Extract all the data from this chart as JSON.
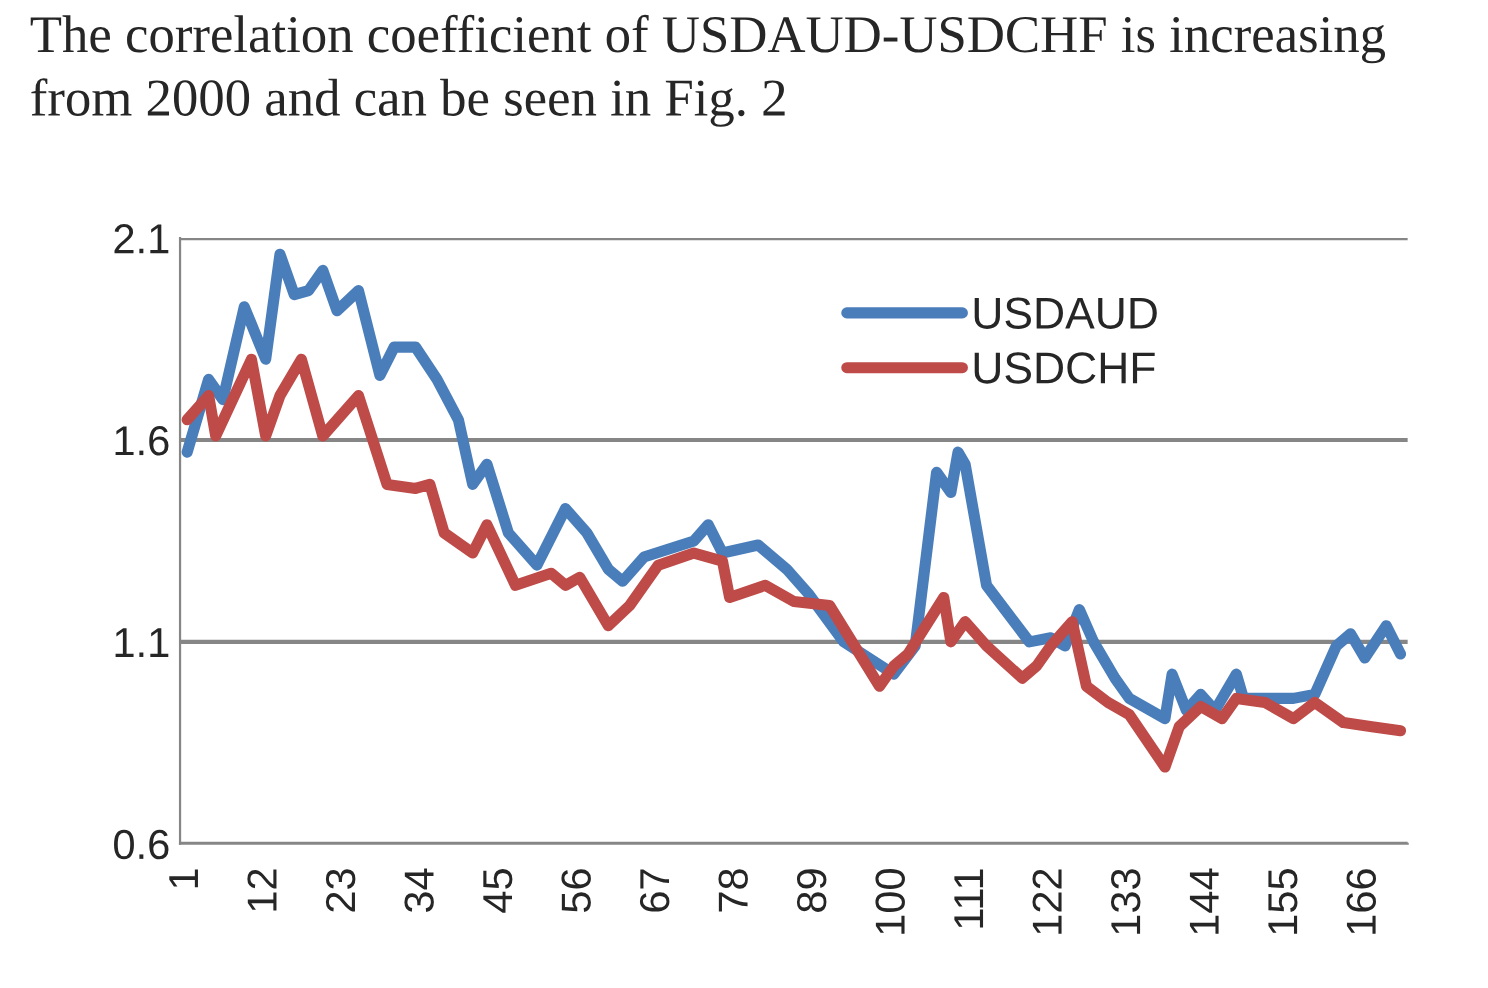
{
  "chart_data": {
    "type": "line",
    "annotations": [
      "The correlation coefficient of USDAUD-USDCHF is increasing from 2000 and can be seen in Fig. 2"
    ],
    "xlim": [
      0,
      172
    ],
    "xticks": [
      1,
      12,
      23,
      34,
      45,
      56,
      67,
      78,
      89,
      100,
      111,
      122,
      133,
      144,
      155,
      166
    ],
    "ylim": [
      0.6,
      2.1
    ],
    "yticks": [
      {
        "value": 0.6,
        "label": "0.6"
      },
      {
        "value": 1.1,
        "label": "1.1"
      },
      {
        "value": 1.6,
        "label": "1.6"
      },
      {
        "value": 2.1,
        "label": "2.1"
      }
    ],
    "grid": "y",
    "legend": "top right",
    "marker": "none",
    "line_style": "solid",
    "series": [
      {
        "name": "USDAUD",
        "color": "#4a7ebb",
        "x": [
          1,
          4,
          6,
          9,
          12,
          14,
          16,
          18,
          20,
          22,
          25,
          28,
          30,
          33,
          36,
          39,
          41,
          43,
          46,
          50,
          54,
          57,
          60,
          62,
          65,
          72,
          74,
          76,
          81,
          85,
          88,
          93,
          100,
          103,
          106,
          108,
          109,
          110,
          113,
          116,
          119,
          122,
          124,
          126,
          128,
          131,
          133,
          138,
          139,
          141,
          143,
          145,
          148,
          149,
          156,
          159,
          162,
          164,
          166,
          169,
          171
        ],
        "values": [
          1.57,
          1.75,
          1.7,
          1.93,
          1.8,
          2.06,
          1.96,
          1.97,
          2.02,
          1.92,
          1.97,
          1.76,
          1.83,
          1.83,
          1.75,
          1.65,
          1.49,
          1.54,
          1.37,
          1.29,
          1.43,
          1.37,
          1.28,
          1.25,
          1.31,
          1.35,
          1.39,
          1.32,
          1.34,
          1.28,
          1.22,
          1.1,
          1.02,
          1.09,
          1.52,
          1.47,
          1.57,
          1.54,
          1.24,
          1.17,
          1.1,
          1.11,
          1.09,
          1.18,
          1.1,
          1.01,
          0.96,
          0.91,
          1.02,
          0.93,
          0.97,
          0.93,
          1.02,
          0.96,
          0.96,
          0.97,
          1.09,
          1.12,
          1.06,
          1.14,
          1.07
        ]
      },
      {
        "name": "USDCHF",
        "color": "#be4b48",
        "x": [
          1,
          4,
          5,
          10,
          12,
          14,
          17,
          20,
          25,
          29,
          33,
          35,
          37,
          41,
          43,
          47,
          52,
          54,
          56,
          60,
          63,
          67,
          72,
          76,
          77,
          82,
          86,
          91,
          98,
          100,
          102,
          107,
          108,
          110,
          113,
          118,
          120,
          122,
          125,
          127,
          130,
          133,
          138,
          140,
          143,
          146,
          148,
          152,
          156,
          159,
          163,
          167,
          171
        ],
        "values": [
          1.65,
          1.71,
          1.61,
          1.8,
          1.61,
          1.71,
          1.8,
          1.61,
          1.71,
          1.49,
          1.48,
          1.49,
          1.37,
          1.32,
          1.39,
          1.24,
          1.27,
          1.24,
          1.26,
          1.14,
          1.19,
          1.29,
          1.32,
          1.3,
          1.21,
          1.24,
          1.2,
          1.19,
          0.99,
          1.04,
          1.07,
          1.21,
          1.1,
          1.15,
          1.09,
          1.01,
          1.04,
          1.09,
          1.15,
          0.99,
          0.95,
          0.92,
          0.79,
          0.89,
          0.94,
          0.91,
          0.96,
          0.95,
          0.91,
          0.95,
          0.9,
          0.89,
          0.88
        ]
      }
    ]
  }
}
